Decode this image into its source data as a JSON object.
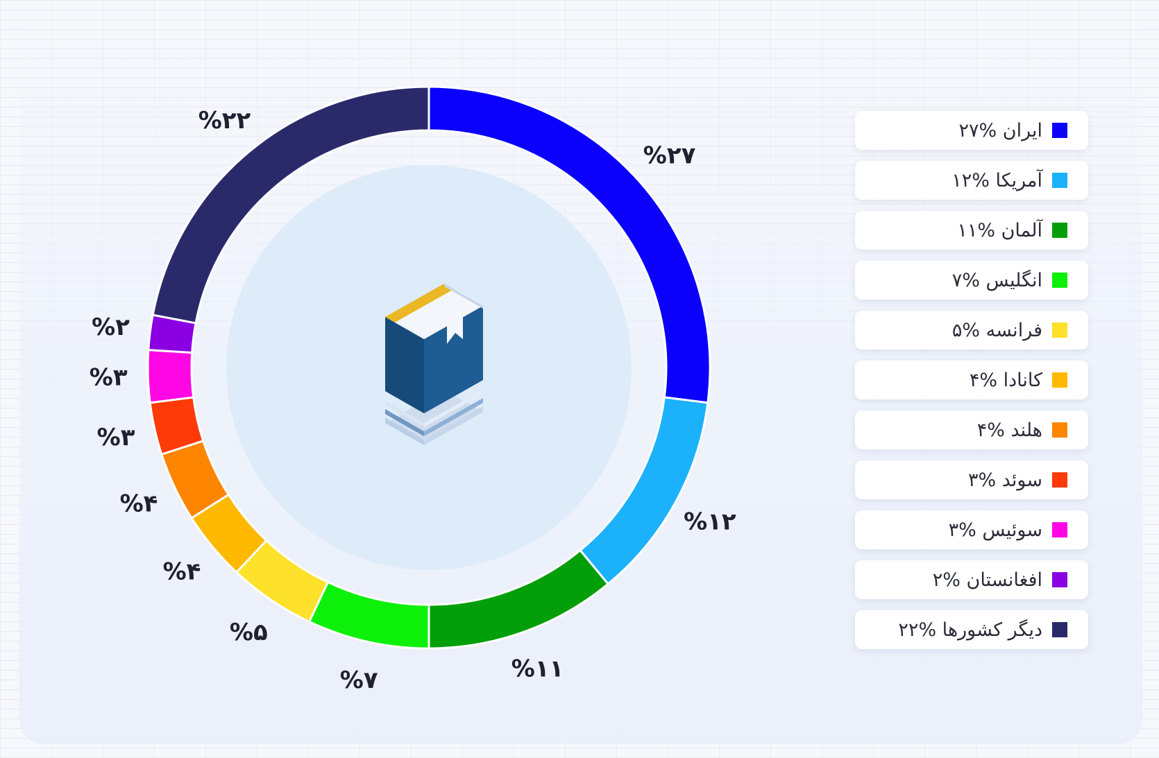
{
  "colors": {
    "center_disc": "#deebf9",
    "book_cover_front": "#1e5c94",
    "book_cover_side": "#164a78",
    "book_top": "#e9b824",
    "pages_light": "#a9c3df"
  },
  "chart_data": {
    "type": "pie",
    "variant": "donut",
    "center_icon": "book-icon",
    "legend_position": "right",
    "slices": [
      {
        "label": "ایران",
        "value": 27,
        "value_label": "%۲۷",
        "legend_text": "ایران %۲۷",
        "color": "#0a00fb"
      },
      {
        "label": "آمریکا",
        "value": 12,
        "value_label": "%۱۲",
        "legend_text": "آمریکا %۱۲",
        "color": "#1cb1fb"
      },
      {
        "label": "آلمان",
        "value": 11,
        "value_label": "%۱۱",
        "legend_text": "آلمان %۱۱",
        "color": "#039f0b"
      },
      {
        "label": "انگلیس",
        "value": 7,
        "value_label": "%۷",
        "legend_text": "انگلیس %۷",
        "color": "#0cf00a"
      },
      {
        "label": "فرانسه",
        "value": 5,
        "value_label": "%۵",
        "legend_text": "فرانسه %۵",
        "color": "#fde12a"
      },
      {
        "label": "کانادا",
        "value": 4,
        "value_label": "%۴",
        "legend_text": "کانادا %۴",
        "color": "#feb900"
      },
      {
        "label": "هلند",
        "value": 4,
        "value_label": "%۴",
        "legend_text": "هلند %۴",
        "color": "#fe8500"
      },
      {
        "label": "سوئد",
        "value": 3,
        "value_label": "%۳",
        "legend_text": "سوئد %۳",
        "color": "#fe3a08"
      },
      {
        "label": "سوئیس",
        "value": 3,
        "value_label": "%۳",
        "legend_text": "سوئیس %۳",
        "color": "#ff06e4"
      },
      {
        "label": "افغانستان",
        "value": 2,
        "value_label": "%۲",
        "legend_text": "افغانستان %۲",
        "color": "#8b00e2"
      },
      {
        "label": "دیگر کشورها",
        "value": 22,
        "value_label": "%۲۲",
        "legend_text": "دیگر کشورها %۲۲",
        "color": "#2a2a6b"
      }
    ]
  }
}
